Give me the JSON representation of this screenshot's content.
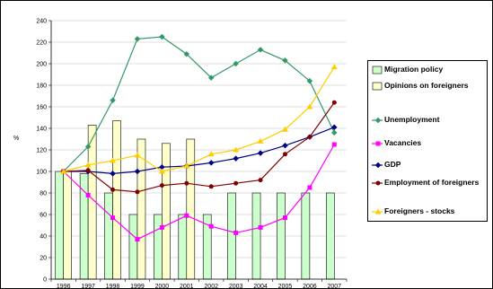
{
  "chart_data": {
    "type": "bar+line",
    "categories": [
      "1996",
      "1997",
      "1998",
      "1999",
      "2000",
      "2001",
      "2002",
      "2003",
      "2004",
      "2005",
      "2006",
      "2007"
    ],
    "ylabel": "%",
    "ylim": [
      0,
      240
    ],
    "yticks": [
      "0",
      "20",
      "40",
      "60",
      "80",
      "100",
      "120",
      "140",
      "160",
      "180",
      "200",
      "220",
      "240"
    ],
    "grid": true,
    "legend_position": "right",
    "bar_series": [
      {
        "name": "Migration policy",
        "color": "#ccffcc",
        "values": [
          100,
          98,
          80,
          60,
          60,
          60,
          60,
          80,
          80,
          80,
          80,
          80
        ]
      },
      {
        "name": "Opinions on foreigners",
        "color": "#ffffcc",
        "values": [
          100,
          143,
          147,
          130,
          126,
          130,
          null,
          null,
          null,
          null,
          null,
          null
        ]
      }
    ],
    "line_series": [
      {
        "name": "Unemployment",
        "color": "#339966",
        "marker": "diamond",
        "values": [
          100,
          123,
          166,
          223,
          225,
          209,
          187,
          200,
          213,
          203,
          184,
          136
        ]
      },
      {
        "name": "Vacancies",
        "color": "#ff00ff",
        "marker": "square",
        "values": [
          100,
          78,
          57,
          37,
          48,
          59,
          49,
          43,
          48,
          57,
          85,
          125
        ]
      },
      {
        "name": "GDP",
        "color": "#000080",
        "marker": "diamond",
        "values": [
          100,
          100,
          98,
          100,
          104,
          105,
          108,
          112,
          117,
          124,
          132,
          141
        ]
      },
      {
        "name": "Employment of foreigners",
        "color": "#800000",
        "marker": "circle",
        "values": [
          100,
          101,
          83,
          81,
          87,
          89,
          86,
          89,
          92,
          116,
          132,
          164
        ]
      },
      {
        "name": "Foreigners - stocks",
        "color": "#ffcc00",
        "marker": "triangle",
        "values": [
          100,
          106,
          110,
          115,
          100,
          105,
          116,
          120,
          128,
          139,
          160,
          197
        ]
      }
    ]
  }
}
